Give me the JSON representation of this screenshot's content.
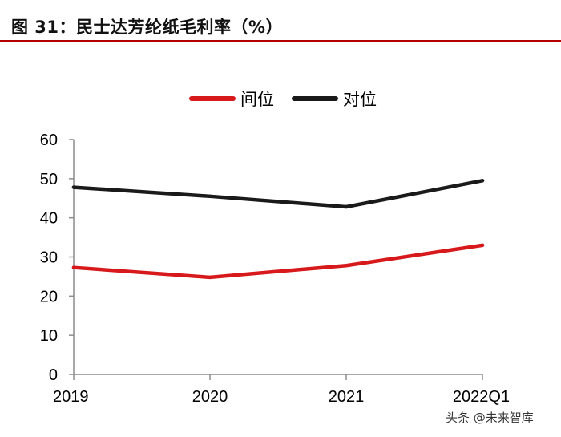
{
  "figure": {
    "title": "图 31：民士达芳纶纸毛利率（%）",
    "accent_color": "#b40000"
  },
  "watermark": {
    "text": "头条 @未来智库"
  },
  "chart_data": {
    "type": "line",
    "title": "图 31：民士达芳纶纸毛利率（%）",
    "xlabel": "",
    "ylabel": "",
    "categories": [
      "2019",
      "2020",
      "2021",
      "2022Q1"
    ],
    "ylim": [
      0,
      60
    ],
    "yticks": [
      "0",
      "10",
      "20",
      "30",
      "40",
      "50",
      "60"
    ],
    "grid": false,
    "legend_position": "top-center",
    "series": [
      {
        "name": "间位",
        "color": "#d7191c",
        "values": [
          27.3,
          24.8,
          27.8,
          33.0
        ]
      },
      {
        "name": "对位",
        "color": "#1a1a1a",
        "values": [
          47.8,
          45.5,
          42.8,
          49.5
        ]
      }
    ]
  }
}
